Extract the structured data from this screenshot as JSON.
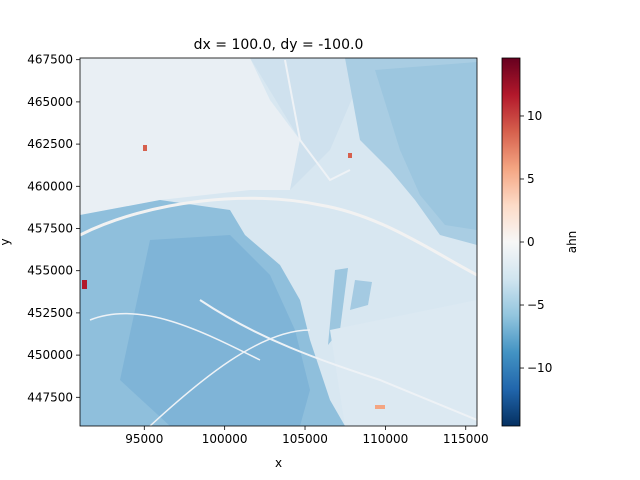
{
  "chart_data": {
    "type": "heatmap",
    "title": "dx = 100.0, dy = -100.0",
    "xlabel": "x",
    "ylabel": "y",
    "xlim": [
      91000,
      115700
    ],
    "ylim": [
      445800,
      467600
    ],
    "xticks": [
      {
        "value": 95000,
        "label": "95000"
      },
      {
        "value": 100000,
        "label": "100000"
      },
      {
        "value": 105000,
        "label": "105000"
      },
      {
        "value": 110000,
        "label": "110000"
      },
      {
        "value": 115000,
        "label": "115000"
      }
    ],
    "yticks": [
      {
        "value": 447500,
        "label": "447500"
      },
      {
        "value": 450000,
        "label": "450000"
      },
      {
        "value": 452500,
        "label": "452500"
      },
      {
        "value": 455000,
        "label": "455000"
      },
      {
        "value": 457500,
        "label": "457500"
      },
      {
        "value": 460000,
        "label": "460000"
      },
      {
        "value": 462500,
        "label": "462500"
      },
      {
        "value": 465000,
        "label": "465000"
      },
      {
        "value": 467500,
        "label": "467500"
      }
    ],
    "colorbar": {
      "label": "ahn",
      "colormap": "RdBu_r",
      "vmin": -14.6,
      "vmax": 14.6,
      "ticks": [
        {
          "value": 10,
          "label": "10"
        },
        {
          "value": 5,
          "label": "5"
        },
        {
          "value": 0,
          "label": "0"
        },
        {
          "value": -5,
          "label": "−5"
        },
        {
          "value": -10,
          "label": "−10"
        }
      ]
    },
    "grid": false
  }
}
